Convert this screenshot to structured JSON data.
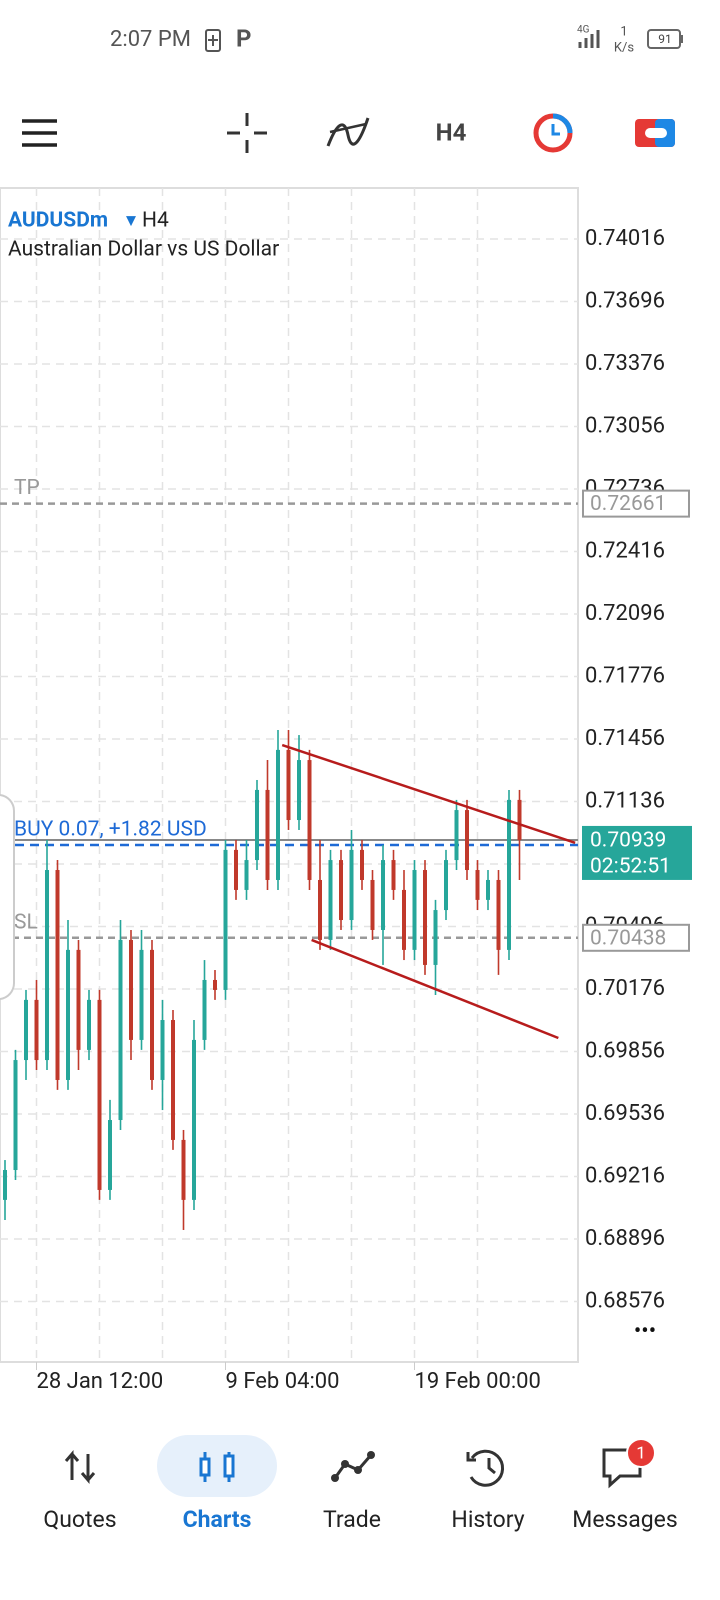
{
  "status_bar": {
    "time": "2:07 PM",
    "network": "4G",
    "speed_value": "1",
    "speed_unit": "K/s",
    "battery": "91"
  },
  "toolbar": {
    "timeframe": "H4"
  },
  "chart_data": {
    "type": "candlestick",
    "symbol": "AUDUSDm",
    "timeframe": "H4",
    "description": "Australian Dollar vs US Dollar",
    "categories": [
      null,
      null,
      null,
      "28 Jan 12:00",
      null,
      null,
      null,
      null,
      null,
      null,
      null,
      null,
      null,
      null,
      null,
      null,
      null,
      null,
      null,
      null,
      null,
      "9 Feb 04:00",
      null,
      null,
      null,
      null,
      null,
      null,
      null,
      null,
      null,
      null,
      null,
      null,
      null,
      null,
      null,
      null,
      null,
      "19 Feb 00:00",
      null,
      null,
      null,
      null,
      null,
      null,
      null,
      null,
      null,
      null
    ],
    "open": [
      0.69096,
      0.69249,
      0.69812,
      0.7012,
      0.69812,
      0.70785,
      0.6971,
      0.70376,
      0.69864,
      0.7012,
      0.69147,
      0.69505,
      0.70427,
      0.69915,
      0.70376,
      0.6971,
      0.70017,
      0.69403,
      0.69096,
      0.69915,
      0.70222,
      0.70171,
      0.70888,
      0.70683,
      0.70836,
      0.71195,
      0.70734,
      0.714,
      0.71041,
      0.71348,
      0.70734,
      0.70427,
      0.70836,
      0.70529,
      0.70888,
      0.70734,
      0.70478,
      0.70836,
      0.70683,
      0.70376,
      0.70785,
      0.70299,
      0.7058,
      0.70836,
      0.71092,
      0.70785,
      0.70632,
      0.70734,
      0.70376,
      0.71144
    ],
    "high": [
      0.693,
      0.69864,
      0.70171,
      0.70222,
      0.70939,
      0.70836,
      0.70529,
      0.70427,
      0.70171,
      0.70171,
      0.69608,
      0.70529,
      0.70478,
      0.70478,
      0.70427,
      0.7012,
      0.70068,
      0.69454,
      0.70017,
      0.70324,
      0.70273,
      0.70939,
      0.70939,
      0.70939,
      0.71246,
      0.71348,
      0.71502,
      0.71502,
      0.71476,
      0.714,
      0.70939,
      0.70888,
      0.70888,
      0.7099,
      0.70939,
      0.70785,
      0.70913,
      0.70888,
      0.70785,
      0.70836,
      0.70836,
      0.70632,
      0.70888,
      0.71144,
      0.71144,
      0.70836,
      0.70785,
      0.70785,
      0.71195,
      0.71195
    ],
    "low": [
      0.68993,
      0.69198,
      0.6971,
      0.69761,
      0.69761,
      0.69659,
      0.69659,
      0.69761,
      0.69812,
      0.69096,
      0.69096,
      0.69454,
      0.69812,
      0.69864,
      0.69659,
      0.69556,
      0.69352,
      0.68942,
      0.69044,
      0.69864,
      0.7012,
      0.7012,
      0.70632,
      0.70632,
      0.70785,
      0.70683,
      0.70683,
      0.7099,
      0.7099,
      0.70683,
      0.70376,
      0.70376,
      0.70478,
      0.70478,
      0.70683,
      0.70427,
      0.70299,
      0.70632,
      0.70324,
      0.70324,
      0.70248,
      0.70145,
      0.70529,
      0.70785,
      0.70734,
      0.7058,
      0.7058,
      0.70248,
      0.70324,
      0.70734
    ],
    "close": [
      0.69249,
      0.69812,
      0.7012,
      0.69812,
      0.70785,
      0.6971,
      0.70376,
      0.69864,
      0.7012,
      0.69147,
      0.69505,
      0.70427,
      0.69915,
      0.70376,
      0.6971,
      0.70017,
      0.69403,
      0.69096,
      0.69915,
      0.70222,
      0.70171,
      0.70888,
      0.70683,
      0.70836,
      0.71195,
      0.70734,
      0.714,
      0.71041,
      0.71348,
      0.70734,
      0.70427,
      0.70836,
      0.70529,
      0.70888,
      0.70734,
      0.70478,
      0.70836,
      0.70683,
      0.70376,
      0.70785,
      0.70299,
      0.7058,
      0.70836,
      0.71092,
      0.70785,
      0.70632,
      0.70734,
      0.70376,
      0.71144,
      0.70939
    ],
    "up_color": "#26a69a",
    "down_color": "#c0392b",
    "ylim": [
      0.68266,
      0.74277
    ],
    "yticks": [
      0.74016,
      0.73696,
      0.73376,
      0.73056,
      0.72736,
      0.72416,
      0.72096,
      0.71776,
      0.71456,
      0.71136,
      0.70816,
      0.70496,
      0.70176,
      0.69856,
      0.69536,
      0.69216,
      0.68896,
      0.68576
    ],
    "grid": true,
    "trendlines": [
      {
        "start": [
          26.4,
          0.71425
        ],
        "end": [
          54.3,
          0.70924
        ],
        "color": "#b71c1c"
      },
      {
        "start": [
          29.2,
          0.70427
        ],
        "end": [
          52.7,
          0.69925
        ],
        "color": "#b71c1c"
      }
    ],
    "take_profit": {
      "label": "TP",
      "value": 0.72661
    },
    "stop_loss": {
      "label": "SL",
      "value": 0.70438
    },
    "position": {
      "label": "BUY 0.07,  +1.82 USD",
      "value": 0.70913
    },
    "current_price": 0.70939,
    "countdown": "02:52:51"
  },
  "more": "•••",
  "nav": {
    "items": [
      "Quotes",
      "Charts",
      "Trade",
      "History",
      "Messages"
    ],
    "active": "Charts",
    "badge": "1"
  }
}
